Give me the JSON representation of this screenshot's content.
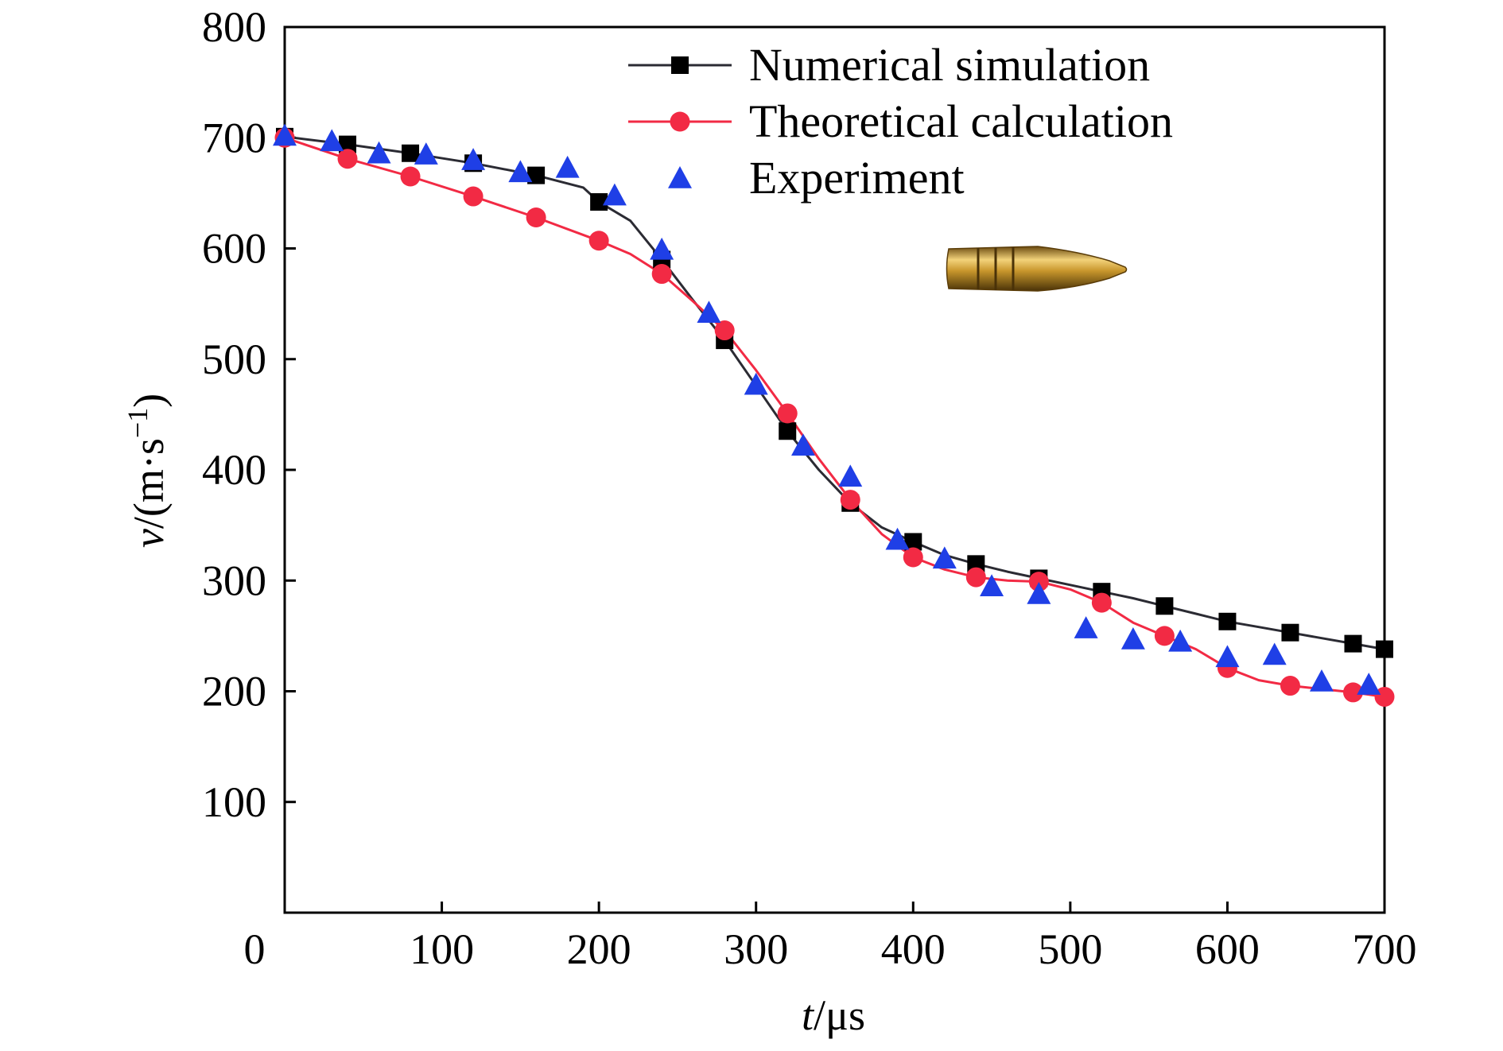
{
  "chart_data": {
    "type": "line",
    "xlabel_var": "t",
    "xlabel_unit": "/μs",
    "ylabel_var": "v",
    "ylabel_unit": "/(m·s",
    "ylabel_sup": "−1",
    "ylabel_close": ")",
    "xlim": [
      0,
      700
    ],
    "ylim": [
      0,
      800
    ],
    "xticks": [
      0,
      100,
      200,
      300,
      400,
      500,
      600,
      700
    ],
    "yticks": [
      100,
      200,
      300,
      400,
      500,
      600,
      700,
      800
    ],
    "xtick_labels": [
      "0",
      "100",
      "200",
      "300",
      "400",
      "500",
      "600",
      "700"
    ],
    "ytick_labels": [
      "100",
      "200",
      "300",
      "400",
      "500",
      "600",
      "700",
      "800"
    ],
    "grid": false,
    "legend_position": "top-right",
    "image_inset": "bullet-icon",
    "series": [
      {
        "name": "Numerical simulation",
        "color": "#2b2b33",
        "marker": "square",
        "marker_color": "#000000",
        "line": [
          [
            0,
            701
          ],
          [
            40,
            694
          ],
          [
            80,
            686
          ],
          [
            120,
            677
          ],
          [
            160,
            666
          ],
          [
            190,
            655
          ],
          [
            200,
            642
          ],
          [
            220,
            625
          ],
          [
            240,
            590
          ],
          [
            260,
            553
          ],
          [
            280,
            517
          ],
          [
            300,
            476
          ],
          [
            320,
            435
          ],
          [
            340,
            400
          ],
          [
            360,
            370
          ],
          [
            380,
            348
          ],
          [
            400,
            335
          ],
          [
            420,
            323
          ],
          [
            440,
            315
          ],
          [
            460,
            308
          ],
          [
            480,
            302
          ],
          [
            500,
            296
          ],
          [
            520,
            290
          ],
          [
            540,
            284
          ],
          [
            560,
            277
          ],
          [
            580,
            270
          ],
          [
            600,
            263
          ],
          [
            620,
            258
          ],
          [
            640,
            253
          ],
          [
            660,
            248
          ],
          [
            680,
            243
          ],
          [
            700,
            238
          ]
        ],
        "points": [
          [
            0,
            701
          ],
          [
            40,
            694
          ],
          [
            80,
            686
          ],
          [
            120,
            677
          ],
          [
            160,
            666
          ],
          [
            200,
            642
          ],
          [
            240,
            590
          ],
          [
            280,
            517
          ],
          [
            320,
            435
          ],
          [
            360,
            370
          ],
          [
            400,
            335
          ],
          [
            440,
            315
          ],
          [
            480,
            302
          ],
          [
            520,
            290
          ],
          [
            560,
            277
          ],
          [
            600,
            263
          ],
          [
            640,
            253
          ],
          [
            680,
            243
          ],
          [
            700,
            238
          ]
        ]
      },
      {
        "name": "Theoretical calculation",
        "color": "#f22a44",
        "marker": "circle",
        "marker_color": "#f22a44",
        "line": [
          [
            0,
            700
          ],
          [
            40,
            681
          ],
          [
            80,
            665
          ],
          [
            120,
            647
          ],
          [
            160,
            628
          ],
          [
            200,
            607
          ],
          [
            220,
            595
          ],
          [
            240,
            577
          ],
          [
            260,
            552
          ],
          [
            280,
            526
          ],
          [
            300,
            490
          ],
          [
            320,
            451
          ],
          [
            340,
            410
          ],
          [
            360,
            373
          ],
          [
            380,
            342
          ],
          [
            400,
            321
          ],
          [
            420,
            310
          ],
          [
            440,
            303
          ],
          [
            460,
            300
          ],
          [
            480,
            299
          ],
          [
            500,
            292
          ],
          [
            520,
            280
          ],
          [
            540,
            262
          ],
          [
            560,
            250
          ],
          [
            580,
            238
          ],
          [
            600,
            221
          ],
          [
            620,
            210
          ],
          [
            640,
            205
          ],
          [
            660,
            202
          ],
          [
            680,
            199
          ],
          [
            700,
            195
          ]
        ],
        "points": [
          [
            0,
            700
          ],
          [
            40,
            681
          ],
          [
            80,
            665
          ],
          [
            120,
            647
          ],
          [
            160,
            628
          ],
          [
            200,
            607
          ],
          [
            240,
            577
          ],
          [
            280,
            526
          ],
          [
            320,
            451
          ],
          [
            360,
            373
          ],
          [
            400,
            321
          ],
          [
            440,
            303
          ],
          [
            480,
            299
          ],
          [
            520,
            280
          ],
          [
            560,
            250
          ],
          [
            600,
            221
          ],
          [
            640,
            205
          ],
          [
            680,
            199
          ],
          [
            700,
            195
          ]
        ]
      },
      {
        "name": "Experiment",
        "color": "#1f3fe6",
        "marker": "triangle",
        "marker_color": "#1f3fe6",
        "line": [],
        "points": [
          [
            0,
            702
          ],
          [
            30,
            697
          ],
          [
            60,
            686
          ],
          [
            90,
            685
          ],
          [
            120,
            680
          ],
          [
            150,
            669
          ],
          [
            180,
            673
          ],
          [
            210,
            648
          ],
          [
            240,
            599
          ],
          [
            270,
            542
          ],
          [
            300,
            477
          ],
          [
            330,
            422
          ],
          [
            360,
            394
          ],
          [
            390,
            337
          ],
          [
            420,
            320
          ],
          [
            450,
            295
          ],
          [
            480,
            288
          ],
          [
            510,
            257
          ],
          [
            540,
            247
          ],
          [
            570,
            245
          ],
          [
            600,
            231
          ],
          [
            630,
            233
          ],
          [
            660,
            209
          ],
          [
            690,
            206
          ]
        ]
      }
    ]
  }
}
